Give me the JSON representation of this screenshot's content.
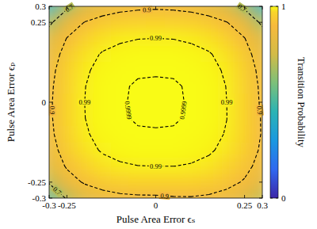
{
  "chart_data": {
    "type": "heatmap",
    "x_label": "Pulse Area Error ϵₛ",
    "y_label": "Pulse Area Error ϵₚ",
    "x": [
      -0.3,
      -0.25,
      -0.2,
      -0.15,
      -0.1,
      -0.05,
      0,
      0.05,
      0.1,
      0.15,
      0.2,
      0.25,
      0.3
    ],
    "y": [
      0.3,
      0.25,
      0.2,
      0.15,
      0.1,
      0.05,
      0,
      -0.05,
      -0.1,
      -0.15,
      -0.2,
      -0.25,
      -0.3
    ],
    "cells": [
      [
        0.4533,
        0.6687,
        0.7831,
        0.8414,
        0.8693,
        0.8812,
        0.8861,
        0.8812,
        0.8693,
        0.8414,
        0.7831,
        0.6687,
        0.4533
      ],
      [
        0.6687,
        0.8262,
        0.9031,
        0.9389,
        0.9544,
        0.9601,
        0.9619,
        0.9601,
        0.9544,
        0.9389,
        0.9031,
        0.8262,
        0.6687
      ],
      [
        0.7831,
        0.9031,
        0.9564,
        0.9785,
        0.9867,
        0.9895,
        0.99,
        0.9895,
        0.9867,
        0.9785,
        0.9564,
        0.9031,
        0.7831
      ],
      [
        0.8414,
        0.9389,
        0.9785,
        0.9925,
        0.9969,
        0.9981,
        0.99822,
        0.9981,
        0.9969,
        0.9925,
        0.9785,
        0.9389,
        0.8414
      ],
      [
        0.8693,
        0.9544,
        0.9867,
        0.9969,
        0.99936,
        0.9998,
        0.99984,
        0.9998,
        0.99936,
        0.9969,
        0.9867,
        0.9544,
        0.8693
      ],
      [
        0.8812,
        0.9601,
        0.9895,
        0.9981,
        0.9998,
        0.99999,
        0.99999,
        0.99999,
        0.9998,
        0.9981,
        0.9895,
        0.9601,
        0.8812
      ],
      [
        0.8861,
        0.9619,
        0.99,
        0.99822,
        0.99984,
        0.99999,
        1,
        0.99999,
        0.99984,
        0.99822,
        0.99,
        0.9619,
        0.8861
      ],
      [
        0.885,
        0.9612,
        0.9897,
        0.9981,
        0.9998,
        0.99999,
        0.99999,
        0.99999,
        0.9998,
        0.9982,
        0.9902,
        0.9634,
        0.8927
      ],
      [
        0.8775,
        0.9568,
        0.9873,
        0.997,
        0.99938,
        0.9998,
        0.99984,
        0.9998,
        0.9994,
        0.9972,
        0.9884,
        0.9616,
        0.8938
      ],
      [
        0.8558,
        0.9436,
        0.9798,
        0.9929,
        0.997,
        0.9981,
        0.99822,
        0.9982,
        0.9972,
        0.9936,
        0.9825,
        0.953,
        0.8846
      ],
      [
        0.8086,
        0.9128,
        0.96,
        0.9798,
        0.9873,
        0.9897,
        0.99,
        0.9902,
        0.9884,
        0.9825,
        0.9671,
        0.9322,
        0.8596
      ],
      [
        0.7161,
        0.8474,
        0.9128,
        0.9436,
        0.9568,
        0.9612,
        0.9619,
        0.9634,
        0.9616,
        0.953,
        0.9322,
        0.8898,
        0.8107
      ],
      [
        0.5444,
        0.7161,
        0.8086,
        0.8558,
        0.8775,
        0.885,
        0.8861,
        0.8927,
        0.8938,
        0.8846,
        0.8596,
        0.8107,
        0.7266
      ]
    ],
    "xlim": [
      -0.3,
      0.3
    ],
    "ylim": [
      -0.3,
      0.3
    ],
    "xticks": [
      -0.3,
      -0.25,
      0,
      0.25,
      0.3
    ],
    "yticks": [
      -0.3,
      -0.25,
      0,
      0.25,
      0.3
    ],
    "contour_levels": [
      0.7,
      0.9,
      0.99,
      0.9999
    ],
    "colorbar": {
      "label": "Transition Probability",
      "lim": [
        0,
        1
      ],
      "ticks": [
        0,
        1
      ]
    }
  }
}
